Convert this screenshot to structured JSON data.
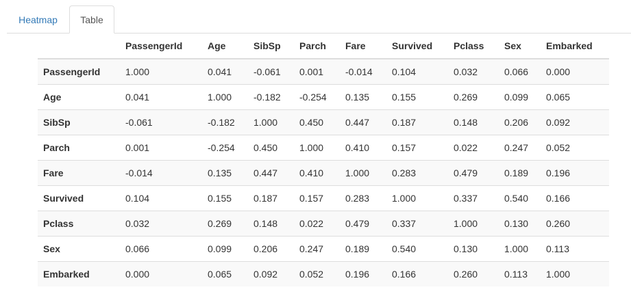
{
  "tabs": [
    {
      "label": "Heatmap",
      "active": false
    },
    {
      "label": "Table",
      "active": true
    }
  ],
  "table": {
    "corner": "",
    "columns": [
      "PassengerId",
      "Age",
      "SibSp",
      "Parch",
      "Fare",
      "Survived",
      "Pclass",
      "Sex",
      "Embarked"
    ],
    "rows": [
      {
        "label": "PassengerId",
        "values": [
          "1.000",
          "0.041",
          "-0.061",
          "0.001",
          "-0.014",
          "0.104",
          "0.032",
          "0.066",
          "0.000"
        ]
      },
      {
        "label": "Age",
        "values": [
          "0.041",
          "1.000",
          "-0.182",
          "-0.254",
          "0.135",
          "0.155",
          "0.269",
          "0.099",
          "0.065"
        ]
      },
      {
        "label": "SibSp",
        "values": [
          "-0.061",
          "-0.182",
          "1.000",
          "0.450",
          "0.447",
          "0.187",
          "0.148",
          "0.206",
          "0.092"
        ]
      },
      {
        "label": "Parch",
        "values": [
          "0.001",
          "-0.254",
          "0.450",
          "1.000",
          "0.410",
          "0.157",
          "0.022",
          "0.247",
          "0.052"
        ]
      },
      {
        "label": "Fare",
        "values": [
          "-0.014",
          "0.135",
          "0.447",
          "0.410",
          "1.000",
          "0.283",
          "0.479",
          "0.189",
          "0.196"
        ]
      },
      {
        "label": "Survived",
        "values": [
          "0.104",
          "0.155",
          "0.187",
          "0.157",
          "0.283",
          "1.000",
          "0.337",
          "0.540",
          "0.166"
        ]
      },
      {
        "label": "Pclass",
        "values": [
          "0.032",
          "0.269",
          "0.148",
          "0.022",
          "0.479",
          "0.337",
          "1.000",
          "0.130",
          "0.260"
        ]
      },
      {
        "label": "Sex",
        "values": [
          "0.066",
          "0.099",
          "0.206",
          "0.247",
          "0.189",
          "0.540",
          "0.130",
          "1.000",
          "0.113"
        ]
      },
      {
        "label": "Embarked",
        "values": [
          "0.000",
          "0.065",
          "0.092",
          "0.052",
          "0.196",
          "0.166",
          "0.260",
          "0.113",
          "1.000"
        ]
      }
    ]
  },
  "colors": {
    "link": "#337ab7",
    "border": "#dddddd",
    "stripe": "#f9f9f9",
    "text": "#333333"
  }
}
